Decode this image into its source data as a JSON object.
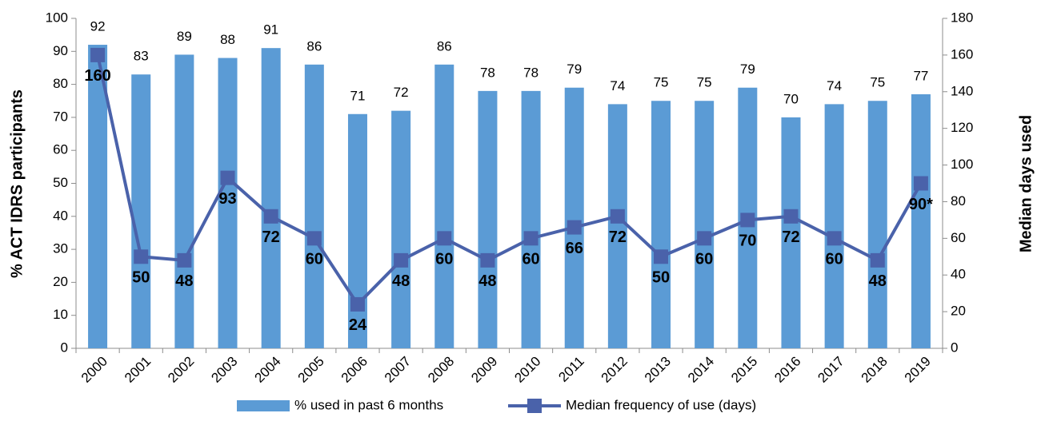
{
  "chart_data": {
    "type": "bar",
    "categories": [
      "2000",
      "2001",
      "2002",
      "2003",
      "2004",
      "2005",
      "2006",
      "2007",
      "2008",
      "2009",
      "2010",
      "2011",
      "2012",
      "2013",
      "2014",
      "2015",
      "2016",
      "2017",
      "2018",
      "2019"
    ],
    "series": [
      {
        "name": "% used in past 6 months",
        "type": "bar",
        "color": "#5b9bd5",
        "values": [
          92,
          83,
          89,
          88,
          91,
          86,
          71,
          72,
          86,
          78,
          78,
          79,
          74,
          75,
          75,
          79,
          70,
          74,
          75,
          77
        ]
      },
      {
        "name": "Median frequency of use (days)",
        "type": "line",
        "axis": "y2",
        "color": "#4a62aa",
        "values": [
          160,
          50,
          48,
          93,
          72,
          60,
          24,
          48,
          60,
          48,
          60,
          66,
          72,
          50,
          60,
          70,
          72,
          60,
          48,
          90
        ],
        "value_labels": [
          "160",
          "50",
          "48",
          "93",
          "72",
          "60",
          "24",
          "48",
          "60",
          "48",
          "60",
          "66",
          "72",
          "50",
          "60",
          "70",
          "72",
          "60",
          "48",
          "90*"
        ]
      }
    ],
    "ylabel": "% ACT IDRS participants",
    "y2label": "Median days used",
    "ylim": [
      0,
      100
    ],
    "yticks": [
      0,
      10,
      20,
      30,
      40,
      50,
      60,
      70,
      80,
      90,
      100
    ],
    "y2lim": [
      0,
      180
    ],
    "y2ticks": [
      0,
      20,
      40,
      60,
      80,
      100,
      120,
      140,
      160,
      180
    ],
    "grid": false,
    "legend": "bottom"
  }
}
